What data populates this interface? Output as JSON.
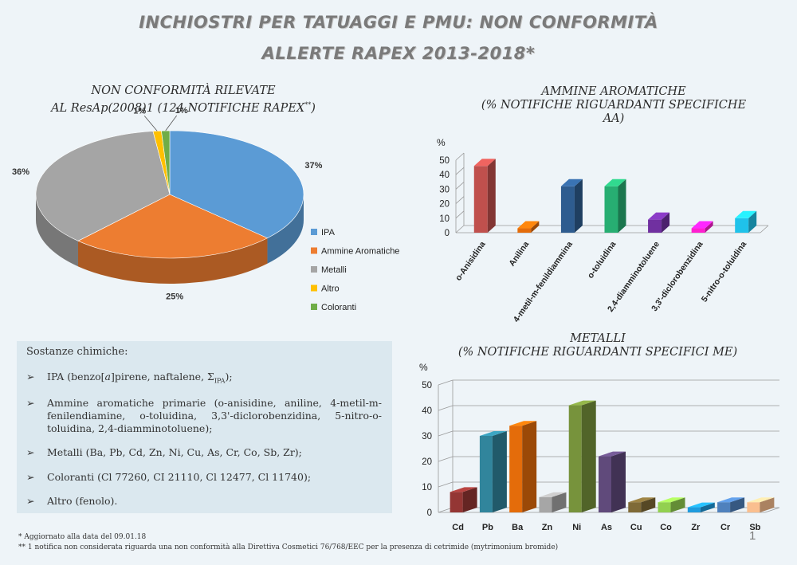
{
  "title_line1": "INCHIOSTRI PER TATUAGGI E PMU: NON CONFORMITÀ",
  "title_line2": "ALLERTE RAPEX 2013-2018*",
  "pie_title_line1": "NON CONFORMITÀ  RILEVATE",
  "pie_title_line2": "AL ResAp(2008)1 (124 NOTIFICHE RAPEX",
  "pie_title_sup": "**",
  "pie_title_close": ")",
  "amine_title_line1": "AMMINE AROMATICHE",
  "amine_title_line2": "(% NOTIFICHE RIGUARDANTI SPECIFICHE",
  "amine_title_line3": "AA)",
  "metal_title_line1": "METALLI",
  "metal_title_line2": "(% NOTIFICHE RIGUARDANTI  SPECIFICI ME)",
  "chart_data": [
    {
      "type": "pie",
      "title": "NON CONFORMITÀ RILEVATE AL ResAp(2008)1 (124 NOTIFICHE RAPEX**)",
      "legend_position": "right",
      "slices": [
        {
          "label": "IPA",
          "value": 37,
          "display": "37%",
          "color": "#5b9bd5"
        },
        {
          "label": "Ammine Aromatiche",
          "value": 25,
          "display": "25%",
          "color": "#ed7d31"
        },
        {
          "label": "Metalli",
          "value": 36,
          "display": "36%",
          "color": "#a5a5a5"
        },
        {
          "label": "Altro",
          "value": 1,
          "display": "1%",
          "color": "#ffc000"
        },
        {
          "label": "Coloranti",
          "value": 1,
          "display": "1%",
          "color": "#70ad47"
        }
      ]
    },
    {
      "type": "bar",
      "title": "AMMINE AROMATICHE (% NOTIFICHE RIGUARDANTI SPECIFICHE AA)",
      "ylabel": "%",
      "ylim": [
        0,
        50
      ],
      "yticks": [
        0,
        10,
        20,
        30,
        40,
        50
      ],
      "categories": [
        "o-Anisidina",
        "Anilina",
        "4-metil-m-fenildiammina",
        "o-toluidina",
        "2,4-diamminotoluene",
        "3,3'-diclorobenzidina",
        "5-nitro-o-toluidina"
      ],
      "values": [
        46,
        3,
        32,
        32,
        9,
        3,
        10
      ],
      "colors": [
        "#c0504d",
        "#e46c0a",
        "#2e5c8f",
        "#27ae72",
        "#7030a0",
        "#ff1fd0",
        "#1fc2ea"
      ]
    },
    {
      "type": "bar",
      "title": "METALLI (% NOTIFICHE RIGUARDANTI SPECIFICI ME)",
      "ylabel": "%",
      "ylim": [
        0,
        50
      ],
      "yticks": [
        0,
        10,
        20,
        30,
        40,
        50
      ],
      "grid": true,
      "categories": [
        "Cd",
        "Pb",
        "Ba",
        "Zn",
        "Ni",
        "As",
        "Cu",
        "Co",
        "Zr",
        "Cr",
        "Sb"
      ],
      "values": [
        8,
        30,
        34,
        6,
        42,
        22,
        4,
        4,
        2,
        4,
        4
      ],
      "colors": [
        "#943634",
        "#31859c",
        "#e46c0a",
        "#a6a6a6",
        "#77933c",
        "#604a7b",
        "#7f6a37",
        "#92d050",
        "#1f9bde",
        "#4f81bd",
        "#fabf8f"
      ]
    }
  ],
  "substances": {
    "heading": "Sostanze chimiche:",
    "arrow": "➢",
    "items": [
      {
        "pre": "IPA (benzo[",
        "ital": "a",
        "mid": "]pirene, naftalene, Σ",
        "sub": "IPA",
        "post": ");"
      },
      {
        "text": "Ammine aromatiche primarie (o-anisidine, aniline, 4-metil-m-fenilendiamine, o-toluidina, 3,3'-diclorobenzidina, 5-nitro-o-toluidina, 2,4-diamminotoluene);"
      },
      {
        "text": "Metalli (Ba, Pb, Cd, Zn, Ni, Cu, As, Cr, Co, Sb, Zr);"
      },
      {
        "text": "Coloranti (Cl 77260, CI 21110, Cl 12477, Cl 11740);"
      },
      {
        "text": "Altro (fenolo)."
      }
    ]
  },
  "footnote1": "* Aggiornato alla data del 09.01.18",
  "footnote2": "** 1 notifica non considerata riguarda una non conformità alla Direttiva Cosmetici 76/768/EEC per la presenza di cetrimide (mytrimonium bromide)",
  "page_number": "1"
}
